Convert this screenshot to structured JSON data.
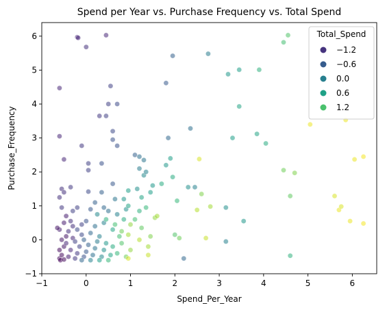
{
  "chart_data": {
    "type": "scatter",
    "title": "Spend per Year vs. Purchase Frequency vs. Total Spend",
    "xlabel": "Spend_Per_Year",
    "ylabel": "Purchase_Frequency",
    "xlim": [
      -1,
      6.55
    ],
    "ylim": [
      -1,
      6.4
    ],
    "xticks": [
      -1,
      0,
      1,
      2,
      3,
      4,
      5,
      6
    ],
    "yticks": [
      -1,
      0,
      1,
      2,
      3,
      4,
      5,
      6
    ],
    "grid": false,
    "hue": "Total_Spend",
    "hue_range": [
      -1.6,
      2.0
    ],
    "colormap": "viridis",
    "legend": {
      "title": "Total_Spend",
      "placement": "top-right",
      "entries": [
        {
          "label": "−1.2",
          "value": -1.2,
          "color": "#46337e"
        },
        {
          "label": "−0.6",
          "value": -0.6,
          "color": "#365c8d"
        },
        {
          "label": "0.0",
          "value": 0.0,
          "color": "#277f8e"
        },
        {
          "label": "0.6",
          "value": 0.6,
          "color": "#1fa187"
        },
        {
          "label": "1.2",
          "value": 1.2,
          "color": "#4ac16d"
        }
      ]
    },
    "points": [
      {
        "x": -0.6,
        "y": -0.55,
        "hue": -1.5
      },
      {
        "x": -0.55,
        "y": -0.45,
        "hue": -1.5
      },
      {
        "x": -0.6,
        "y": -0.3,
        "hue": -1.5
      },
      {
        "x": -0.5,
        "y": -0.2,
        "hue": -1.4
      },
      {
        "x": -0.55,
        "y": 0.0,
        "hue": -1.4
      },
      {
        "x": -0.45,
        "y": 0.1,
        "hue": -1.4
      },
      {
        "x": -0.6,
        "y": 0.3,
        "hue": -1.3
      },
      {
        "x": -0.5,
        "y": 0.5,
        "hue": -1.3
      },
      {
        "x": -0.4,
        "y": -0.5,
        "hue": -1.3
      },
      {
        "x": -0.35,
        "y": -0.3,
        "hue": -1.2
      },
      {
        "x": -0.45,
        "y": -0.1,
        "hue": -1.2
      },
      {
        "x": -0.3,
        "y": 0.05,
        "hue": -1.2
      },
      {
        "x": -0.4,
        "y": 0.25,
        "hue": -1.1
      },
      {
        "x": -0.3,
        "y": 0.4,
        "hue": -1.1
      },
      {
        "x": -0.25,
        "y": -0.55,
        "hue": -1.0
      },
      {
        "x": -0.2,
        "y": -0.4,
        "hue": -1.0
      },
      {
        "x": -0.15,
        "y": -0.2,
        "hue": -0.9
      },
      {
        "x": -0.25,
        "y": -0.05,
        "hue": -0.9
      },
      {
        "x": -0.1,
        "y": 0.15,
        "hue": -0.8
      },
      {
        "x": -0.2,
        "y": 0.3,
        "hue": -0.8
      },
      {
        "x": -0.05,
        "y": -0.5,
        "hue": -0.7
      },
      {
        "x": 0.0,
        "y": -0.35,
        "hue": -0.6
      },
      {
        "x": 0.05,
        "y": -0.15,
        "hue": -0.5
      },
      {
        "x": -0.05,
        "y": 0.0,
        "hue": -0.5
      },
      {
        "x": 0.1,
        "y": 0.2,
        "hue": -0.4
      },
      {
        "x": 0.15,
        "y": -0.45,
        "hue": -0.3
      },
      {
        "x": 0.2,
        "y": -0.25,
        "hue": -0.2
      },
      {
        "x": 0.25,
        "y": -0.05,
        "hue": -0.1
      },
      {
        "x": 0.3,
        "y": 0.1,
        "hue": 0.0
      },
      {
        "x": 0.35,
        "y": -0.5,
        "hue": 0.1
      },
      {
        "x": 0.4,
        "y": -0.3,
        "hue": 0.2
      },
      {
        "x": 0.45,
        "y": -0.1,
        "hue": 0.3
      },
      {
        "x": 0.55,
        "y": -0.45,
        "hue": 0.5
      },
      {
        "x": 0.6,
        "y": -0.2,
        "hue": 0.6
      },
      {
        "x": 0.7,
        "y": -0.4,
        "hue": 0.8
      },
      {
        "x": 0.8,
        "y": -0.1,
        "hue": 1.0
      },
      {
        "x": 0.9,
        "y": -0.5,
        "hue": 1.2
      },
      {
        "x": 1.0,
        "y": -0.3,
        "hue": 1.4
      },
      {
        "x": 0.2,
        "y": 0.4,
        "hue": -0.3
      },
      {
        "x": 0.0,
        "y": 0.55,
        "hue": -0.7
      },
      {
        "x": -0.35,
        "y": 0.55,
        "hue": -1.1
      },
      {
        "x": 0.4,
        "y": 0.5,
        "hue": 0.0
      },
      {
        "x": 0.6,
        "y": 0.3,
        "hue": 0.5
      },
      {
        "x": 0.75,
        "y": 0.1,
        "hue": 0.9
      },
      {
        "x": -0.1,
        "y": -0.6,
        "hue": -0.4
      },
      {
        "x": 0.1,
        "y": -0.6,
        "hue": 0.0
      },
      {
        "x": 0.3,
        "y": -0.6,
        "hue": 0.4
      },
      {
        "x": 0.5,
        "y": -0.6,
        "hue": 0.8
      },
      {
        "x": -0.58,
        "y": -0.6,
        "hue": -1.55
      },
      {
        "x": -0.5,
        "y": -0.58,
        "hue": -1.5
      },
      {
        "x": -0.6,
        "y": 4.47,
        "hue": -1.2
      },
      {
        "x": -0.6,
        "y": 3.05,
        "hue": -1.2
      },
      {
        "x": -0.5,
        "y": 2.37,
        "hue": -1.2
      },
      {
        "x": -0.55,
        "y": 1.5,
        "hue": -1.1
      },
      {
        "x": -0.5,
        "y": 1.4,
        "hue": -1.1
      },
      {
        "x": -0.6,
        "y": 1.25,
        "hue": -1.1
      },
      {
        "x": -0.35,
        "y": 1.55,
        "hue": -1.0
      },
      {
        "x": -0.55,
        "y": 0.95,
        "hue": -1.0
      },
      {
        "x": -0.2,
        "y": 0.95,
        "hue": -0.9
      },
      {
        "x": -0.3,
        "y": 0.85,
        "hue": -0.9
      },
      {
        "x": -0.2,
        "y": 5.97,
        "hue": -1.2
      },
      {
        "x": -0.18,
        "y": 5.95,
        "hue": -1.2
      },
      {
        "x": 0.0,
        "y": 5.68,
        "hue": -1.1
      },
      {
        "x": 0.45,
        "y": 6.03,
        "hue": -1.2
      },
      {
        "x": -0.1,
        "y": 2.77,
        "hue": -1.0
      },
      {
        "x": 0.05,
        "y": 2.25,
        "hue": -0.9
      },
      {
        "x": 0.05,
        "y": 2.05,
        "hue": -0.9
      },
      {
        "x": 0.05,
        "y": 1.42,
        "hue": -0.8
      },
      {
        "x": 0.35,
        "y": 2.25,
        "hue": -0.7
      },
      {
        "x": 0.3,
        "y": 3.65,
        "hue": -1.0
      },
      {
        "x": 0.45,
        "y": 3.65,
        "hue": -0.9
      },
      {
        "x": 0.5,
        "y": 4.0,
        "hue": -0.9
      },
      {
        "x": 0.7,
        "y": 4.0,
        "hue": -0.8
      },
      {
        "x": 0.55,
        "y": 4.53,
        "hue": -0.9
      },
      {
        "x": 0.6,
        "y": 3.2,
        "hue": -0.8
      },
      {
        "x": 0.6,
        "y": 2.95,
        "hue": -0.7
      },
      {
        "x": 0.7,
        "y": 2.77,
        "hue": -0.7
      },
      {
        "x": 0.6,
        "y": 1.65,
        "hue": -0.6
      },
      {
        "x": 0.35,
        "y": 1.4,
        "hue": -0.5
      },
      {
        "x": 0.2,
        "y": 1.1,
        "hue": -0.5
      },
      {
        "x": 0.1,
        "y": 0.9,
        "hue": -0.6
      },
      {
        "x": 0.4,
        "y": 0.95,
        "hue": -0.4
      },
      {
        "x": 0.5,
        "y": 0.85,
        "hue": -0.3
      },
      {
        "x": 0.65,
        "y": 1.2,
        "hue": -0.2
      },
      {
        "x": 0.7,
        "y": 0.75,
        "hue": 0.0
      },
      {
        "x": 0.9,
        "y": 0.9,
        "hue": 0.2
      },
      {
        "x": 0.85,
        "y": 1.2,
        "hue": 0.3
      },
      {
        "x": 0.95,
        "y": 1.0,
        "hue": 0.5
      },
      {
        "x": 0.95,
        "y": 1.45,
        "hue": 0.4
      },
      {
        "x": 0.85,
        "y": 0.6,
        "hue": 0.6
      },
      {
        "x": 1.1,
        "y": 0.6,
        "hue": 0.9
      },
      {
        "x": 1.25,
        "y": 0.35,
        "hue": 1.1
      },
      {
        "x": 1.2,
        "y": 0.85,
        "hue": 0.7
      },
      {
        "x": 1.35,
        "y": 0.95,
        "hue": 0.8
      },
      {
        "x": 1.45,
        "y": 0.1,
        "hue": 1.3
      },
      {
        "x": 1.1,
        "y": 2.5,
        "hue": -0.5
      },
      {
        "x": 1.2,
        "y": 2.45,
        "hue": -0.3
      },
      {
        "x": 1.3,
        "y": 2.35,
        "hue": -0.2
      },
      {
        "x": 1.3,
        "y": 1.9,
        "hue": 0.1
      },
      {
        "x": 1.35,
        "y": 2.0,
        "hue": 0.0
      },
      {
        "x": 1.2,
        "y": 2.1,
        "hue": -0.1
      },
      {
        "x": 1.15,
        "y": 1.5,
        "hue": 0.2
      },
      {
        "x": 1.45,
        "y": 1.4,
        "hue": 0.4
      },
      {
        "x": 1.5,
        "y": 1.6,
        "hue": 0.3
      },
      {
        "x": 1.25,
        "y": 1.25,
        "hue": 0.5
      },
      {
        "x": 1.4,
        "y": -0.2,
        "hue": 1.5
      },
      {
        "x": 1.55,
        "y": 0.65,
        "hue": 1.4
      },
      {
        "x": 1.6,
        "y": 0.7,
        "hue": 1.5
      },
      {
        "x": 1.7,
        "y": 1.65,
        "hue": 0.6
      },
      {
        "x": 1.8,
        "y": 2.2,
        "hue": 0.3
      },
      {
        "x": 1.8,
        "y": 4.62,
        "hue": -0.6
      },
      {
        "x": 1.95,
        "y": 5.42,
        "hue": -0.5
      },
      {
        "x": 1.85,
        "y": 3.0,
        "hue": -0.4
      },
      {
        "x": 1.9,
        "y": 2.4,
        "hue": 0.4
      },
      {
        "x": 1.95,
        "y": 1.85,
        "hue": 0.6
      },
      {
        "x": 2.0,
        "y": 0.15,
        "hue": 1.0
      },
      {
        "x": 2.05,
        "y": 1.15,
        "hue": 0.8
      },
      {
        "x": 2.1,
        "y": 0.05,
        "hue": 1.2
      },
      {
        "x": 2.2,
        "y": -0.55,
        "hue": -0.4
      },
      {
        "x": 2.3,
        "y": 1.55,
        "hue": 0.2
      },
      {
        "x": 2.35,
        "y": 3.28,
        "hue": -0.3
      },
      {
        "x": 2.45,
        "y": 1.55,
        "hue": 0.0
      },
      {
        "x": 2.5,
        "y": 0.88,
        "hue": 1.6
      },
      {
        "x": 2.55,
        "y": 2.38,
        "hue": 1.8
      },
      {
        "x": 2.6,
        "y": 1.35,
        "hue": 1.3
      },
      {
        "x": 2.7,
        "y": 0.05,
        "hue": 1.7
      },
      {
        "x": 2.75,
        "y": 5.48,
        "hue": -0.1
      },
      {
        "x": 2.8,
        "y": 0.98,
        "hue": 1.5
      },
      {
        "x": 3.15,
        "y": 0.95,
        "hue": 0.2
      },
      {
        "x": 3.15,
        "y": -0.05,
        "hue": 0.0
      },
      {
        "x": 3.2,
        "y": 4.88,
        "hue": 0.3
      },
      {
        "x": 3.3,
        "y": 3.0,
        "hue": 0.4
      },
      {
        "x": 3.45,
        "y": 5.01,
        "hue": 0.4
      },
      {
        "x": 3.45,
        "y": 3.93,
        "hue": 0.5
      },
      {
        "x": 3.55,
        "y": 0.55,
        "hue": 0.3
      },
      {
        "x": 3.85,
        "y": 3.12,
        "hue": 0.5
      },
      {
        "x": 3.9,
        "y": 5.01,
        "hue": 0.7
      },
      {
        "x": 4.05,
        "y": 2.84,
        "hue": 0.6
      },
      {
        "x": 4.45,
        "y": 5.82,
        "hue": 0.9
      },
      {
        "x": 4.45,
        "y": 2.05,
        "hue": 1.2
      },
      {
        "x": 4.55,
        "y": 6.03,
        "hue": 1.0
      },
      {
        "x": 4.6,
        "y": 1.29,
        "hue": 1.1
      },
      {
        "x": 4.6,
        "y": -0.47,
        "hue": 0.7
      },
      {
        "x": 4.7,
        "y": 1.97,
        "hue": 1.3
      },
      {
        "x": 5.05,
        "y": 3.4,
        "hue": 1.9
      },
      {
        "x": 5.6,
        "y": 1.29,
        "hue": 1.8
      },
      {
        "x": 5.7,
        "y": 0.88,
        "hue": 1.9
      },
      {
        "x": 5.75,
        "y": 0.98,
        "hue": 1.8
      },
      {
        "x": 5.85,
        "y": 3.53,
        "hue": 1.9
      },
      {
        "x": 5.95,
        "y": 0.55,
        "hue": 1.9
      },
      {
        "x": 6.05,
        "y": 2.37,
        "hue": 1.9
      },
      {
        "x": 6.25,
        "y": 2.45,
        "hue": 1.95
      },
      {
        "x": 6.25,
        "y": 0.48,
        "hue": 1.95
      },
      {
        "x": 1.0,
        "y": 0.45,
        "hue": 1.4
      },
      {
        "x": 0.95,
        "y": 0.15,
        "hue": 1.5
      },
      {
        "x": 0.8,
        "y": 0.25,
        "hue": 1.2
      },
      {
        "x": 0.65,
        "y": 0.45,
        "hue": 0.9
      },
      {
        "x": 0.45,
        "y": 0.6,
        "hue": 0.7
      },
      {
        "x": 0.25,
        "y": 0.75,
        "hue": 0.1
      },
      {
        "x": -0.1,
        "y": 0.45,
        "hue": -0.9
      },
      {
        "x": -0.45,
        "y": 0.7,
        "hue": -1.3
      },
      {
        "x": -0.65,
        "y": 0.35,
        "hue": -1.4
      },
      {
        "x": 1.2,
        "y": 0.0,
        "hue": 1.6
      },
      {
        "x": 1.4,
        "y": -0.45,
        "hue": 1.7
      },
      {
        "x": 0.95,
        "y": -0.55,
        "hue": 1.8
      }
    ]
  }
}
